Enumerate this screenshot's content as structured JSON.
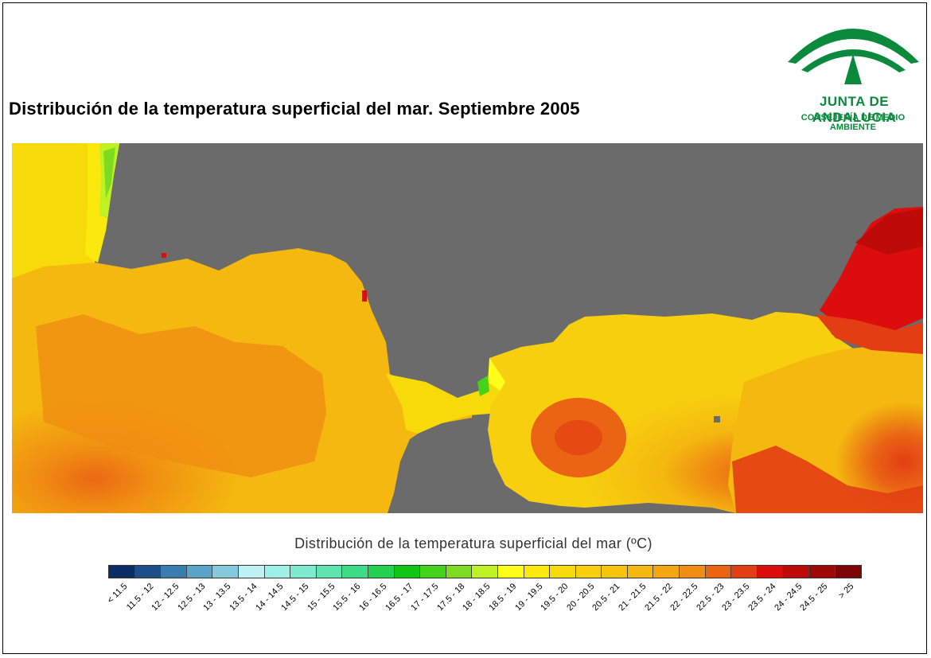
{
  "title": "Distribución de la temperatura superficial del mar. Septiembre 2005",
  "logo": {
    "name": "JUNTA DE ANDALUCIA",
    "subtitle": "CONSEJERÍA DE MEDIO AMBIENTE",
    "color": "#0b8a3e"
  },
  "map": {
    "land_color": "#6b6b6b",
    "description_hidden": true
  },
  "legend": {
    "title": "Distribución de la temperatura superficial del mar (ºC)",
    "classes": [
      {
        "label": "< 11.5",
        "color": "#0a2e63"
      },
      {
        "label": "11.5 - 12",
        "color": "#1c4f87"
      },
      {
        "label": "12 - 12.5",
        "color": "#3a7bb0"
      },
      {
        "label": "12.5 - 13",
        "color": "#5ba4c9"
      },
      {
        "label": "13 - 13.5",
        "color": "#86c9dc"
      },
      {
        "label": "13.5 - 14",
        "color": "#bff1f3"
      },
      {
        "label": "14 - 14.5",
        "color": "#9ff0e6"
      },
      {
        "label": "14.5 - 15",
        "color": "#7ee9cf"
      },
      {
        "label": "15 - 15.5",
        "color": "#5fe4b0"
      },
      {
        "label": "15.5 - 16",
        "color": "#3fdc86"
      },
      {
        "label": "16 - 16.5",
        "color": "#22d052"
      },
      {
        "label": "16.5 - 17",
        "color": "#0fc614"
      },
      {
        "label": "17 - 17.5",
        "color": "#45d21a"
      },
      {
        "label": "17.5 - 18",
        "color": "#7ddc22"
      },
      {
        "label": "18 - 18.5",
        "color": "#bff224"
      },
      {
        "label": "18.5 - 19",
        "color": "#ffff1a"
      },
      {
        "label": "19 - 19.5",
        "color": "#fbe80c"
      },
      {
        "label": "19.5 - 20",
        "color": "#f7da0a"
      },
      {
        "label": "20 - 20.5",
        "color": "#f7cf0e"
      },
      {
        "label": "20.5 - 21",
        "color": "#f6c40e"
      },
      {
        "label": "21 - 21.5",
        "color": "#f4b80f"
      },
      {
        "label": "21.5 - 22",
        "color": "#f2a60f"
      },
      {
        "label": "22 - 22.5",
        "color": "#f08d12"
      },
      {
        "label": "22.5 - 23",
        "color": "#ea6414"
      },
      {
        "label": "23 - 23.5",
        "color": "#e33e13"
      },
      {
        "label": "23.5 - 24",
        "color": "#db0d0d"
      },
      {
        "label": "24 - 24.5",
        "color": "#bf0a0a"
      },
      {
        "label": "24.5 - 25",
        "color": "#9f0808"
      },
      {
        "label": "> 25",
        "color": "#7d0505"
      }
    ]
  }
}
